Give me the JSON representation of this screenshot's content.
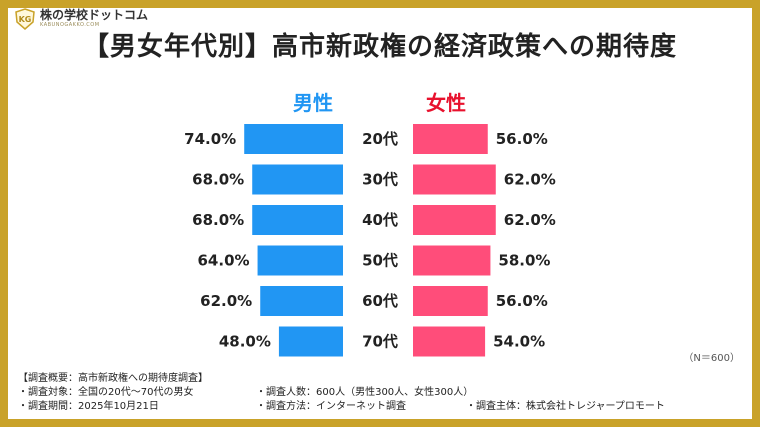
{
  "brand": {
    "name": "株の学校ドットコム",
    "sub": "KABUNOGAKKO.COM"
  },
  "title": "【男女年代別】高市新政権の経済政策への期待度",
  "sample_note": "（N＝600）",
  "colors": {
    "frame": "#c9a229",
    "male": "#2196f3",
    "female": "#ff4d7a",
    "male_label": "#2196f3",
    "female_label": "#e8112d"
  },
  "footer": {
    "heading": "【調査概要：高市新政権への期待度調査】",
    "target": "・調査対象：全国の20代～70代の男女",
    "count": "・調査人数：600人（男性300人、女性300人）",
    "period": "・調査期間：2025年10月21日",
    "method": "・調査方法：インターネット調査",
    "host": "・調査主体：株式会社トレジャープロモート"
  },
  "chart_data": {
    "type": "bar",
    "categories": [
      "20代",
      "30代",
      "40代",
      "50代",
      "60代",
      "70代"
    ],
    "series": [
      {
        "name": "男性",
        "values": [
          74.0,
          68.0,
          68.0,
          64.0,
          62.0,
          48.0
        ]
      },
      {
        "name": "女性",
        "values": [
          56.0,
          62.0,
          62.0,
          58.0,
          56.0,
          54.0
        ]
      }
    ],
    "value_format": "{v}%",
    "orientation": "horizontal-butterfly",
    "grid": false
  }
}
